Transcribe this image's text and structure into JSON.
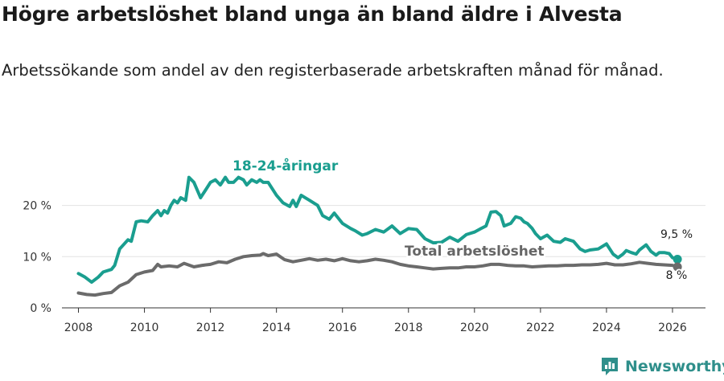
{
  "title": "Högre arbetslöshet bland unga än bland äldre i Alvesta",
  "subtitle": "Arbetssökande som andel av den registerbaserade arbetskraften månad för månad.",
  "brand": {
    "name": "Newsworthy",
    "icon": "newsworthy-logo-icon"
  },
  "colors": {
    "youth": "#1a9e8f",
    "total": "#6b6b6b",
    "grid": "#e3e3e3",
    "axis": "#333333"
  },
  "chart_data": {
    "type": "line",
    "ylim": [
      0,
      27
    ],
    "xlim": [
      2007.5,
      2027.0
    ],
    "y_ticks": [
      {
        "v": 0,
        "label": "0 %"
      },
      {
        "v": 10,
        "label": "10 %"
      },
      {
        "v": 20,
        "label": "20 %"
      }
    ],
    "x_ticks": [
      {
        "v": 2008,
        "label": "2008"
      },
      {
        "v": 2010,
        "label": "2010"
      },
      {
        "v": 2012,
        "label": "2012"
      },
      {
        "v": 2014,
        "label": "2014"
      },
      {
        "v": 2016,
        "label": "2016"
      },
      {
        "v": 2018,
        "label": "2018"
      },
      {
        "v": 2020,
        "label": "2020"
      },
      {
        "v": 2022,
        "label": "2022"
      },
      {
        "v": 2024,
        "label": "2024"
      },
      {
        "v": 2026,
        "label": "2026"
      }
    ],
    "grid": "horizontal",
    "series": [
      {
        "name": "18-24-åringar",
        "key": "youth",
        "end_label": "9,5 %",
        "points": [
          [
            2008.0,
            6.7
          ],
          [
            2008.2,
            6.0
          ],
          [
            2008.4,
            5.0
          ],
          [
            2008.6,
            6.0
          ],
          [
            2008.75,
            7.0
          ],
          [
            2009.0,
            7.5
          ],
          [
            2009.1,
            8.3
          ],
          [
            2009.25,
            11.5
          ],
          [
            2009.5,
            13.3
          ],
          [
            2009.6,
            13.0
          ],
          [
            2009.75,
            16.8
          ],
          [
            2009.9,
            17.0
          ],
          [
            2010.1,
            16.8
          ],
          [
            2010.25,
            18.0
          ],
          [
            2010.4,
            19.0
          ],
          [
            2010.5,
            18.0
          ],
          [
            2010.6,
            19.0
          ],
          [
            2010.7,
            18.5
          ],
          [
            2010.8,
            20.0
          ],
          [
            2010.9,
            21.0
          ],
          [
            2011.0,
            20.5
          ],
          [
            2011.1,
            21.5
          ],
          [
            2011.25,
            21.0
          ],
          [
            2011.35,
            25.5
          ],
          [
            2011.5,
            24.5
          ],
          [
            2011.7,
            21.5
          ],
          [
            2011.85,
            23.0
          ],
          [
            2012.0,
            24.5
          ],
          [
            2012.15,
            25.0
          ],
          [
            2012.3,
            24.0
          ],
          [
            2012.45,
            25.5
          ],
          [
            2012.55,
            24.5
          ],
          [
            2012.7,
            24.5
          ],
          [
            2012.85,
            25.5
          ],
          [
            2013.0,
            25.0
          ],
          [
            2013.1,
            24.0
          ],
          [
            2013.25,
            25.0
          ],
          [
            2013.4,
            24.5
          ],
          [
            2013.5,
            25.0
          ],
          [
            2013.6,
            24.5
          ],
          [
            2013.75,
            24.5
          ],
          [
            2014.0,
            22.0
          ],
          [
            2014.2,
            20.5
          ],
          [
            2014.4,
            19.8
          ],
          [
            2014.5,
            21.0
          ],
          [
            2014.6,
            19.8
          ],
          [
            2014.75,
            22.0
          ],
          [
            2015.0,
            21.0
          ],
          [
            2015.25,
            20.0
          ],
          [
            2015.4,
            18.0
          ],
          [
            2015.6,
            17.3
          ],
          [
            2015.75,
            18.5
          ],
          [
            2016.0,
            16.5
          ],
          [
            2016.25,
            15.5
          ],
          [
            2016.4,
            15.0
          ],
          [
            2016.6,
            14.2
          ],
          [
            2016.75,
            14.5
          ],
          [
            2017.0,
            15.3
          ],
          [
            2017.25,
            14.8
          ],
          [
            2017.5,
            16.0
          ],
          [
            2017.75,
            14.5
          ],
          [
            2018.0,
            15.5
          ],
          [
            2018.25,
            15.3
          ],
          [
            2018.5,
            13.5
          ],
          [
            2018.75,
            12.7
          ],
          [
            2019.0,
            12.8
          ],
          [
            2019.25,
            13.8
          ],
          [
            2019.5,
            13.0
          ],
          [
            2019.75,
            14.3
          ],
          [
            2020.0,
            14.8
          ],
          [
            2020.2,
            15.5
          ],
          [
            2020.35,
            16.0
          ],
          [
            2020.5,
            18.7
          ],
          [
            2020.65,
            18.8
          ],
          [
            2020.8,
            18.0
          ],
          [
            2020.9,
            16.0
          ],
          [
            2021.1,
            16.5
          ],
          [
            2021.25,
            17.8
          ],
          [
            2021.4,
            17.5
          ],
          [
            2021.5,
            16.8
          ],
          [
            2021.6,
            16.5
          ],
          [
            2021.75,
            15.5
          ],
          [
            2021.85,
            14.5
          ],
          [
            2022.0,
            13.5
          ],
          [
            2022.2,
            14.2
          ],
          [
            2022.4,
            13.0
          ],
          [
            2022.6,
            12.8
          ],
          [
            2022.75,
            13.5
          ],
          [
            2023.0,
            13.0
          ],
          [
            2023.2,
            11.5
          ],
          [
            2023.35,
            11.0
          ],
          [
            2023.5,
            11.3
          ],
          [
            2023.75,
            11.5
          ],
          [
            2024.0,
            12.5
          ],
          [
            2024.2,
            10.5
          ],
          [
            2024.35,
            9.8
          ],
          [
            2024.5,
            10.5
          ],
          [
            2024.6,
            11.2
          ],
          [
            2024.75,
            10.8
          ],
          [
            2024.9,
            10.5
          ],
          [
            2025.0,
            11.3
          ],
          [
            2025.2,
            12.3
          ],
          [
            2025.35,
            11.0
          ],
          [
            2025.5,
            10.3
          ],
          [
            2025.6,
            10.8
          ],
          [
            2025.75,
            10.8
          ],
          [
            2025.9,
            10.6
          ],
          [
            2026.0,
            9.8
          ],
          [
            2026.15,
            9.5
          ]
        ]
      },
      {
        "name": "Total arbetslöshet",
        "key": "total",
        "end_label": "8 %",
        "points": [
          [
            2008.0,
            2.9
          ],
          [
            2008.25,
            2.6
          ],
          [
            2008.5,
            2.5
          ],
          [
            2008.75,
            2.8
          ],
          [
            2009.0,
            3.0
          ],
          [
            2009.25,
            4.3
          ],
          [
            2009.5,
            5.0
          ],
          [
            2009.75,
            6.5
          ],
          [
            2010.0,
            7.0
          ],
          [
            2010.25,
            7.3
          ],
          [
            2010.4,
            8.5
          ],
          [
            2010.5,
            8.0
          ],
          [
            2010.75,
            8.2
          ],
          [
            2011.0,
            8.0
          ],
          [
            2011.2,
            8.7
          ],
          [
            2011.5,
            8.0
          ],
          [
            2011.75,
            8.3
          ],
          [
            2012.0,
            8.5
          ],
          [
            2012.25,
            9.0
          ],
          [
            2012.5,
            8.8
          ],
          [
            2012.75,
            9.5
          ],
          [
            2013.0,
            10.0
          ],
          [
            2013.25,
            10.2
          ],
          [
            2013.5,
            10.3
          ],
          [
            2013.6,
            10.6
          ],
          [
            2013.75,
            10.2
          ],
          [
            2014.0,
            10.5
          ],
          [
            2014.25,
            9.4
          ],
          [
            2014.5,
            9.0
          ],
          [
            2014.75,
            9.3
          ],
          [
            2015.0,
            9.6
          ],
          [
            2015.25,
            9.3
          ],
          [
            2015.5,
            9.5
          ],
          [
            2015.75,
            9.2
          ],
          [
            2016.0,
            9.6
          ],
          [
            2016.25,
            9.2
          ],
          [
            2016.5,
            9.0
          ],
          [
            2016.75,
            9.2
          ],
          [
            2017.0,
            9.5
          ],
          [
            2017.25,
            9.3
          ],
          [
            2017.5,
            9.0
          ],
          [
            2017.75,
            8.5
          ],
          [
            2018.0,
            8.2
          ],
          [
            2018.25,
            8.0
          ],
          [
            2018.5,
            7.8
          ],
          [
            2018.75,
            7.6
          ],
          [
            2019.0,
            7.7
          ],
          [
            2019.25,
            7.8
          ],
          [
            2019.5,
            7.8
          ],
          [
            2019.75,
            8.0
          ],
          [
            2020.0,
            8.0
          ],
          [
            2020.25,
            8.2
          ],
          [
            2020.5,
            8.5
          ],
          [
            2020.75,
            8.5
          ],
          [
            2021.0,
            8.3
          ],
          [
            2021.25,
            8.2
          ],
          [
            2021.5,
            8.2
          ],
          [
            2021.75,
            8.0
          ],
          [
            2022.0,
            8.1
          ],
          [
            2022.25,
            8.2
          ],
          [
            2022.5,
            8.2
          ],
          [
            2022.75,
            8.3
          ],
          [
            2023.0,
            8.3
          ],
          [
            2023.25,
            8.4
          ],
          [
            2023.5,
            8.4
          ],
          [
            2023.75,
            8.5
          ],
          [
            2024.0,
            8.7
          ],
          [
            2024.25,
            8.4
          ],
          [
            2024.5,
            8.4
          ],
          [
            2024.75,
            8.6
          ],
          [
            2025.0,
            8.9
          ],
          [
            2025.25,
            8.7
          ],
          [
            2025.5,
            8.5
          ],
          [
            2025.75,
            8.4
          ],
          [
            2026.0,
            8.3
          ],
          [
            2026.15,
            8.0
          ]
        ]
      }
    ]
  }
}
